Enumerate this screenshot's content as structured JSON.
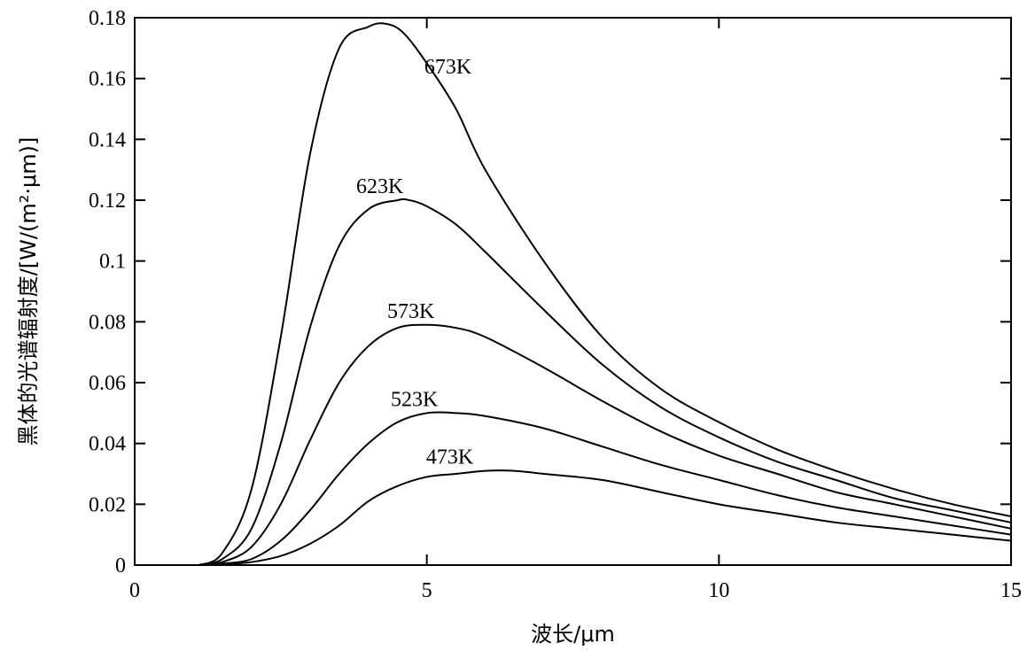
{
  "chart_data": {
    "type": "line",
    "title": "",
    "xlabel": "波长/μm",
    "ylabel": "黑体的光谱辐射度/[W/(m²·μm)]",
    "xlim": [
      0,
      15
    ],
    "ylim": [
      0,
      0.18
    ],
    "x_ticks": [
      0,
      5,
      10,
      15
    ],
    "x_tick_labels": [
      "0",
      "5",
      "10",
      "15"
    ],
    "y_ticks": [
      0,
      0.02,
      0.04,
      0.06,
      0.08,
      0.1,
      0.12,
      0.14,
      0.16,
      0.18
    ],
    "y_tick_labels": [
      "0",
      "0.02",
      "0.04",
      "0.06",
      "0.08",
      "0.1",
      "0.12",
      "0.14",
      "0.16",
      "0.18"
    ],
    "grid": false,
    "series": [
      {
        "name": "673K",
        "x": [
          1.1,
          1.5,
          2.0,
          2.5,
          3.0,
          3.5,
          4.0,
          4.3,
          4.6,
          5.0,
          5.5,
          6.0,
          7.0,
          8.0,
          9.0,
          10.0,
          11.0,
          12.0,
          13.0,
          14.0,
          15.0
        ],
        "y": [
          0.0,
          0.004,
          0.025,
          0.075,
          0.135,
          0.17,
          0.177,
          0.178,
          0.175,
          0.165,
          0.15,
          0.13,
          0.1,
          0.075,
          0.058,
          0.047,
          0.038,
          0.031,
          0.025,
          0.02,
          0.016
        ]
      },
      {
        "name": "623K",
        "x": [
          1.1,
          1.5,
          2.0,
          2.5,
          3.0,
          3.5,
          4.0,
          4.5,
          4.7,
          5.0,
          5.5,
          6.0,
          7.0,
          8.0,
          9.0,
          10.0,
          11.0,
          12.0,
          13.0,
          14.0,
          15.0
        ],
        "y": [
          0.0,
          0.002,
          0.012,
          0.04,
          0.078,
          0.105,
          0.117,
          0.12,
          0.12,
          0.118,
          0.112,
          0.103,
          0.084,
          0.066,
          0.052,
          0.042,
          0.034,
          0.028,
          0.022,
          0.018,
          0.014
        ]
      },
      {
        "name": "573K",
        "x": [
          1.1,
          1.5,
          2.0,
          2.5,
          3.0,
          3.5,
          4.0,
          4.5,
          5.0,
          5.5,
          6.0,
          7.0,
          8.0,
          9.0,
          10.0,
          11.0,
          12.0,
          13.0,
          14.0,
          15.0
        ],
        "y": [
          0.0,
          0.001,
          0.006,
          0.02,
          0.041,
          0.06,
          0.072,
          0.078,
          0.079,
          0.078,
          0.075,
          0.065,
          0.054,
          0.044,
          0.036,
          0.03,
          0.024,
          0.02,
          0.016,
          0.012
        ]
      },
      {
        "name": "523K",
        "x": [
          1.1,
          1.5,
          2.0,
          2.5,
          3.0,
          3.5,
          4.0,
          4.5,
          5.0,
          5.5,
          6.0,
          7.0,
          8.0,
          9.0,
          10.0,
          11.0,
          12.0,
          13.0,
          14.0,
          15.0
        ],
        "y": [
          0.0,
          0.0005,
          0.002,
          0.008,
          0.018,
          0.03,
          0.04,
          0.047,
          0.05,
          0.05,
          0.049,
          0.045,
          0.039,
          0.033,
          0.028,
          0.023,
          0.019,
          0.016,
          0.013,
          0.01
        ]
      },
      {
        "name": "473K",
        "x": [
          1.1,
          1.5,
          2.0,
          2.5,
          3.0,
          3.5,
          4.0,
          4.5,
          5.0,
          5.5,
          6.0,
          6.5,
          7.0,
          8.0,
          9.0,
          10.0,
          11.0,
          12.0,
          13.0,
          14.0,
          15.0
        ],
        "y": [
          0.0,
          0.0002,
          0.001,
          0.003,
          0.007,
          0.013,
          0.021,
          0.026,
          0.029,
          0.03,
          0.031,
          0.031,
          0.03,
          0.028,
          0.024,
          0.02,
          0.017,
          0.014,
          0.012,
          0.01,
          0.008
        ]
      }
    ]
  }
}
